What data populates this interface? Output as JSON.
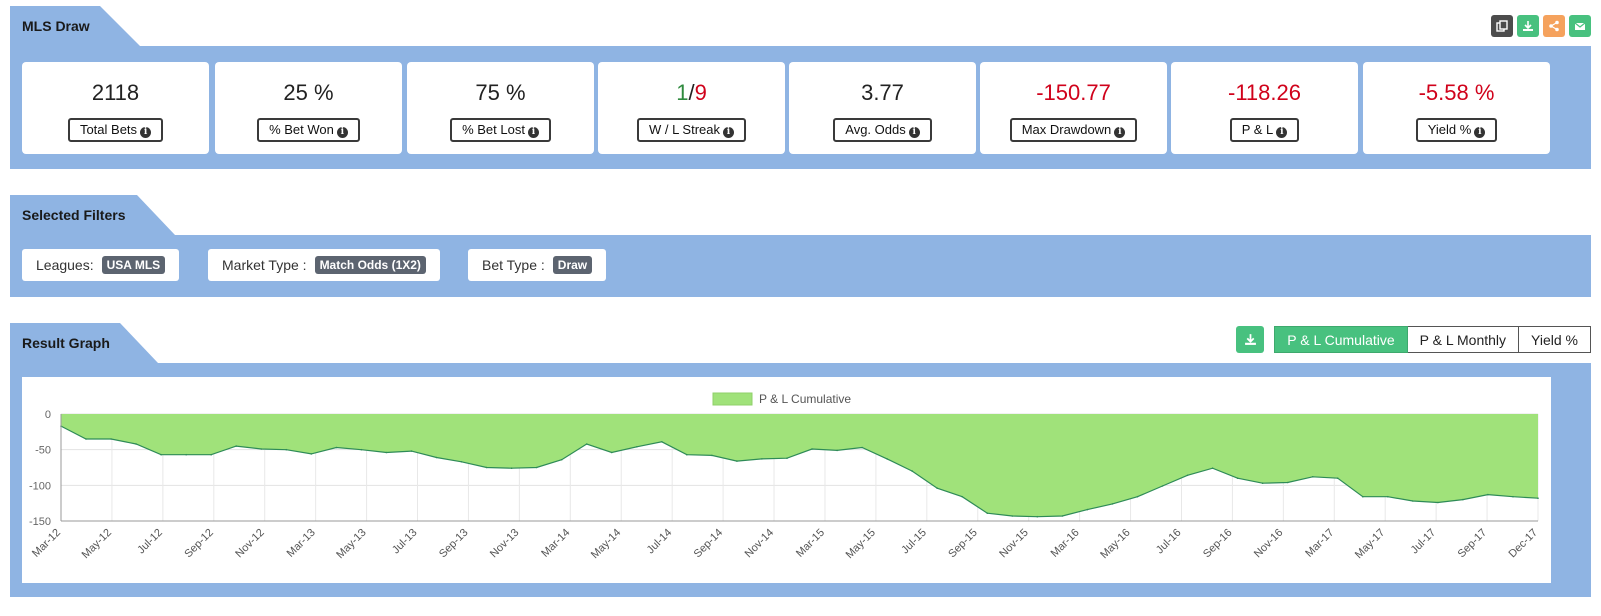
{
  "header": {
    "title": "MLS Draw"
  },
  "toolbar_icons": [
    "copy-icon",
    "download-icon",
    "share-icon",
    "email-icon"
  ],
  "stats": [
    {
      "value": "2118",
      "label": "Total Bets",
      "color": "#222222"
    },
    {
      "value": "25 %",
      "label": "% Bet Won",
      "color": "#222222"
    },
    {
      "value": "75 %",
      "label": "% Bet Lost",
      "color": "#222222"
    },
    {
      "win": "1",
      "sep": "/",
      "loss": "9",
      "label": "W / L Streak"
    },
    {
      "value": "3.77",
      "label": "Avg. Odds",
      "color": "#222222"
    },
    {
      "value": "-150.77",
      "label": "Max Drawdown",
      "color": "#d0021b"
    },
    {
      "value": "-118.26",
      "label": "P & L",
      "color": "#d0021b"
    },
    {
      "value": "-5.58 %",
      "label": "Yield %",
      "color": "#d0021b"
    }
  ],
  "filters": {
    "title": "Selected Filters",
    "items": [
      {
        "label": "Leagues:",
        "value": "USA MLS"
      },
      {
        "label": "Market Type :",
        "value": "Match Odds (1X2)"
      },
      {
        "label": "Bet Type :",
        "value": "Draw"
      }
    ]
  },
  "graph": {
    "title": "Result Graph",
    "buttons": [
      "P & L Cumulative",
      "P & L Monthly",
      "Yield %"
    ],
    "active_button": "P & L Cumulative"
  },
  "chart_data": {
    "type": "area",
    "legend": "P & L Cumulative",
    "fill_color": "#a0e27a",
    "line_color": "#2e8b57",
    "ylim": [
      -150,
      0
    ],
    "yticks": [
      0,
      -50,
      -100,
      -150
    ],
    "x_tick_labels": [
      "Mar-12",
      "May-12",
      "Jul-12",
      "Sep-12",
      "Nov-12",
      "Mar-13",
      "May-13",
      "Jul-13",
      "Sep-13",
      "Nov-13",
      "Mar-14",
      "May-14",
      "Jul-14",
      "Sep-14",
      "Nov-14",
      "Mar-15",
      "May-15",
      "Jul-15",
      "Sep-15",
      "Nov-15",
      "Mar-16",
      "May-16",
      "Jul-16",
      "Sep-16",
      "Nov-16",
      "Mar-17",
      "May-17",
      "Jul-17",
      "Sep-17",
      "Dec-17"
    ],
    "values": [
      -17,
      -35,
      -35,
      -42,
      -57,
      -57,
      -57,
      -45,
      -49,
      -50,
      -56,
      -47,
      -50,
      -54,
      -52,
      -61,
      -67,
      -75,
      -76,
      -75,
      -64,
      -42,
      -54,
      -46,
      -39,
      -57,
      -58,
      -66,
      -63,
      -62,
      -49,
      -51,
      -47,
      -63,
      -80,
      -104,
      -116,
      -139,
      -143,
      -144,
      -143,
      -134,
      -126,
      -116,
      -101,
      -86,
      -76,
      -90,
      -97,
      -96,
      -88,
      -90,
      -116,
      -116,
      -122,
      -124,
      -120,
      -113,
      -116,
      -118
    ]
  }
}
